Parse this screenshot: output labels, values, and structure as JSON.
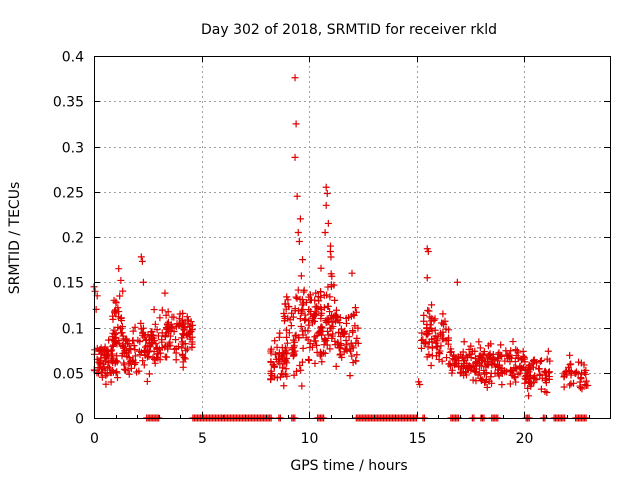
{
  "chart_data": {
    "type": "scatter",
    "title": "Day 302 of 2018, SRMTID for receiver rkld",
    "xlabel": "GPS time / hours",
    "ylabel": "SRMTID / TECUs",
    "xlim": [
      0,
      24
    ],
    "ylim": [
      0,
      0.4
    ],
    "x_ticks": [
      "0",
      "5",
      "10",
      "15",
      "20"
    ],
    "y_ticks": [
      "0",
      "0.05",
      "0.1",
      "0.15",
      "0.2",
      "0.25",
      "0.3",
      "0.35",
      "0.4"
    ],
    "grid": true,
    "marker": "+",
    "color": "#e00000",
    "seed": 302,
    "series": [
      {
        "name": "SRMTID",
        "clusters": [
          {
            "t0": 0.0,
            "t1": 1.1,
            "count": 70,
            "center": 0.06,
            "spread": 0.015
          },
          {
            "t0": 0.8,
            "t1": 1.4,
            "count": 40,
            "center": 0.1,
            "spread": 0.025
          },
          {
            "t0": 1.3,
            "t1": 2.6,
            "count": 80,
            "center": 0.075,
            "spread": 0.022
          },
          {
            "t0": 2.6,
            "t1": 3.4,
            "count": 50,
            "center": 0.085,
            "spread": 0.02
          },
          {
            "t0": 3.4,
            "t1": 4.6,
            "count": 80,
            "center": 0.09,
            "spread": 0.02
          },
          {
            "t0": 8.2,
            "t1": 9.0,
            "count": 50,
            "center": 0.06,
            "spread": 0.02
          },
          {
            "t0": 8.8,
            "t1": 9.8,
            "count": 60,
            "center": 0.1,
            "spread": 0.04
          },
          {
            "t0": 9.6,
            "t1": 10.6,
            "count": 60,
            "center": 0.1,
            "spread": 0.03
          },
          {
            "t0": 10.5,
            "t1": 11.3,
            "count": 60,
            "center": 0.12,
            "spread": 0.04
          },
          {
            "t0": 11.2,
            "t1": 12.3,
            "count": 60,
            "center": 0.09,
            "spread": 0.025
          },
          {
            "t0": 15.2,
            "t1": 16.5,
            "count": 70,
            "center": 0.09,
            "spread": 0.02
          },
          {
            "t0": 16.5,
            "t1": 18.0,
            "count": 80,
            "center": 0.06,
            "spread": 0.015
          },
          {
            "t0": 18.0,
            "t1": 20.0,
            "count": 110,
            "center": 0.06,
            "spread": 0.015
          },
          {
            "t0": 20.0,
            "t1": 21.2,
            "count": 70,
            "center": 0.05,
            "spread": 0.015
          },
          {
            "t0": 21.8,
            "t1": 23.0,
            "count": 40,
            "center": 0.05,
            "spread": 0.012
          }
        ],
        "outliers": [
          {
            "x": 0.0,
            "y": 0.145
          },
          {
            "x": 0.05,
            "y": 0.14
          },
          {
            "x": 0.1,
            "y": 0.12
          },
          {
            "x": 0.15,
            "y": 0.135
          },
          {
            "x": 1.15,
            "y": 0.165
          },
          {
            "x": 1.25,
            "y": 0.152
          },
          {
            "x": 2.2,
            "y": 0.178
          },
          {
            "x": 2.25,
            "y": 0.173
          },
          {
            "x": 2.3,
            "y": 0.15
          },
          {
            "x": 3.3,
            "y": 0.138
          },
          {
            "x": 9.35,
            "y": 0.376
          },
          {
            "x": 9.4,
            "y": 0.325
          },
          {
            "x": 9.35,
            "y": 0.288
          },
          {
            "x": 9.45,
            "y": 0.245
          },
          {
            "x": 9.6,
            "y": 0.22
          },
          {
            "x": 9.5,
            "y": 0.205
          },
          {
            "x": 9.55,
            "y": 0.195
          },
          {
            "x": 9.7,
            "y": 0.175
          },
          {
            "x": 10.8,
            "y": 0.255
          },
          {
            "x": 10.85,
            "y": 0.248
          },
          {
            "x": 10.8,
            "y": 0.235
          },
          {
            "x": 10.9,
            "y": 0.215
          },
          {
            "x": 10.75,
            "y": 0.205
          },
          {
            "x": 11.0,
            "y": 0.19
          },
          {
            "x": 12.0,
            "y": 0.16
          },
          {
            "x": 15.5,
            "y": 0.187
          },
          {
            "x": 15.55,
            "y": 0.184
          },
          {
            "x": 15.5,
            "y": 0.155
          },
          {
            "x": 15.7,
            "y": 0.125
          },
          {
            "x": 15.1,
            "y": 0.04
          },
          {
            "x": 15.15,
            "y": 0.037
          },
          {
            "x": 16.9,
            "y": 0.15
          }
        ],
        "zero_band": [
          [
            2.45,
            3.05
          ],
          [
            4.6,
            8.3
          ],
          [
            8.6,
            8.7
          ],
          [
            9.2,
            9.35
          ],
          [
            10.4,
            10.7
          ],
          [
            12.2,
            15.05
          ],
          [
            15.3,
            15.4
          ],
          [
            16.6,
            17.0
          ],
          [
            17.6,
            17.7
          ],
          [
            18.0,
            18.2
          ],
          [
            18.5,
            18.8
          ],
          [
            20.1,
            20.3
          ],
          [
            20.9,
            21.0
          ],
          [
            21.4,
            21.9
          ],
          [
            22.4,
            22.9
          ]
        ]
      }
    ]
  }
}
